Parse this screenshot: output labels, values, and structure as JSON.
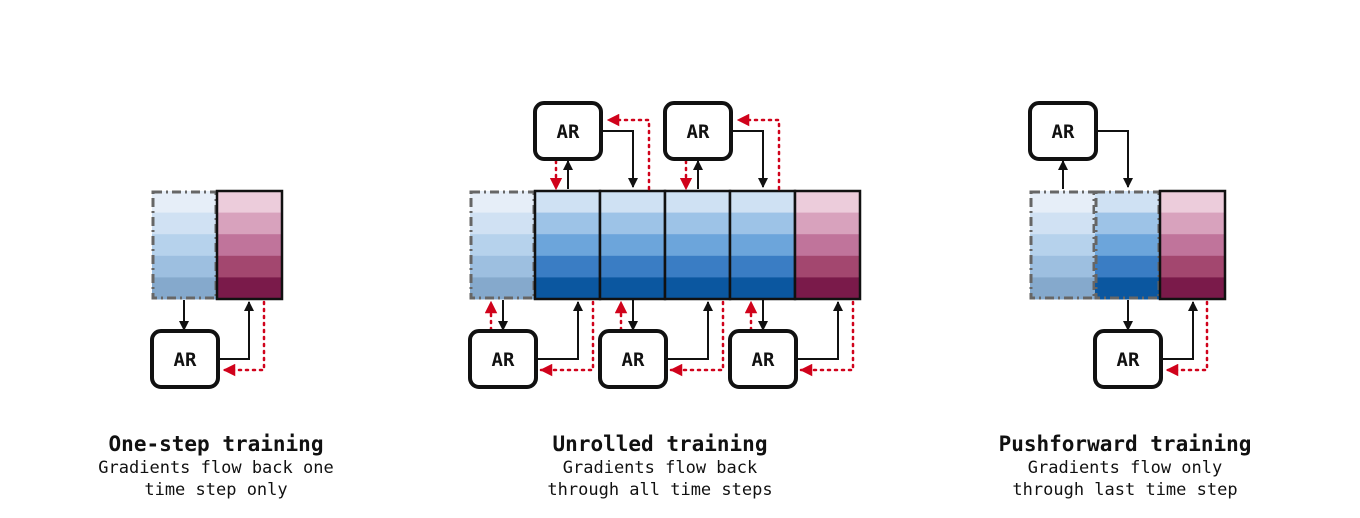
{
  "diagram": {
    "colors": {
      "input_blue": [
        "#e6eef8",
        "#d0e1f3",
        "#b6d2ec",
        "#9dbfe0",
        "#85a9cc"
      ],
      "state_blue": [
        "#cfe1f3",
        "#9dc3e7",
        "#6ca5db",
        "#3a7dc4",
        "#0b57a0"
      ],
      "target_red": [
        "#ecccdb",
        "#d8a2bd",
        "#c0749b",
        "#a3476f",
        "#7a1a4a"
      ],
      "grad_red": "#d0021b",
      "frame_dash": "#666666",
      "ink": "#111111"
    },
    "node_label": "AR",
    "one_step": {
      "title": "One-step training",
      "line1": "Gradients flow back one",
      "line2": "time step only"
    },
    "unrolled": {
      "title": "Unrolled training",
      "line1": "Gradients flow back",
      "line2": "through all time steps"
    },
    "pushforward": {
      "title": "Pushforward training",
      "line1": "Gradients flow only",
      "line2": "through last time step"
    }
  }
}
